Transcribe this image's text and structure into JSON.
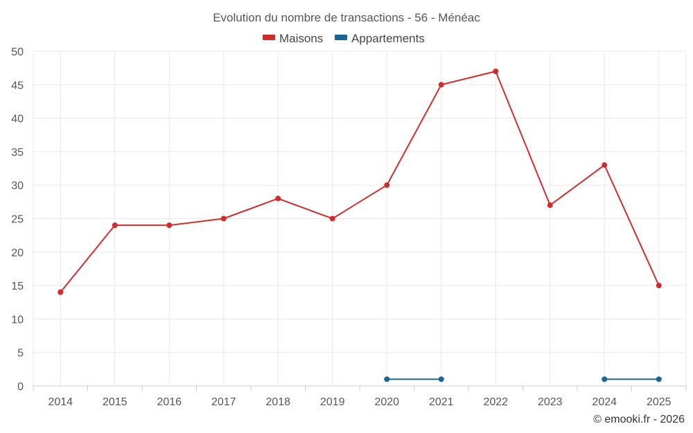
{
  "chart_data": {
    "type": "line",
    "title": "Evolution du nombre de transactions - 56 - Ménéac",
    "categories": [
      "2014",
      "2015",
      "2016",
      "2017",
      "2018",
      "2019",
      "2020",
      "2021",
      "2022",
      "2023",
      "2024",
      "2025"
    ],
    "series": [
      {
        "name": "Maisons",
        "color": "#d22b2b",
        "values": [
          14,
          24,
          24,
          25,
          28,
          25,
          30,
          45,
          47,
          27,
          33,
          15
        ]
      },
      {
        "name": "Appartements",
        "color": "#1a6496",
        "values": [
          null,
          null,
          null,
          null,
          null,
          null,
          1,
          1,
          null,
          null,
          1,
          1
        ]
      }
    ],
    "yticks": [
      0,
      5,
      10,
      15,
      20,
      25,
      30,
      35,
      40,
      45,
      50
    ],
    "ylim": [
      0,
      50
    ],
    "xlabel": "",
    "ylabel": "",
    "grid": true,
    "legend_position": "top-center"
  },
  "credit": "© emooki.fr - 2026"
}
